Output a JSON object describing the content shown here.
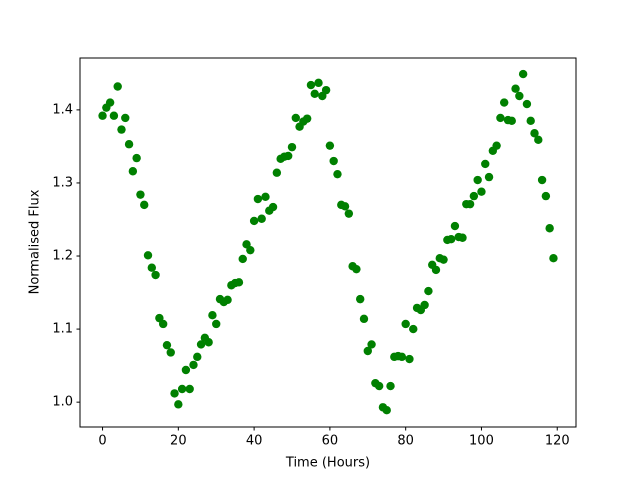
{
  "chart_data": {
    "type": "scatter",
    "color": "green",
    "xlabel": "Time (Hours)",
    "ylabel": "Normalised Flux",
    "xlim": [
      -5.95,
      124.95
    ],
    "ylim": [
      0.966,
      1.471
    ],
    "xticks": [
      0,
      20,
      40,
      60,
      80,
      100,
      120
    ],
    "yticks": [
      {
        "value": 1,
        "label": "1.0"
      },
      1.1,
      1.2,
      1.3,
      1.4
    ],
    "x": [
      0,
      1,
      2,
      3,
      4,
      5,
      6,
      7,
      8,
      9,
      10,
      11,
      12,
      13,
      14,
      15,
      16,
      17,
      18,
      19,
      20,
      21,
      22,
      23,
      24,
      25,
      26,
      27,
      28,
      29,
      30,
      31,
      32,
      33,
      34,
      35,
      36,
      37,
      38,
      39,
      40,
      41,
      42,
      43,
      44,
      45,
      46,
      47,
      48,
      49,
      50,
      51,
      52,
      53,
      54,
      55,
      56,
      57,
      58,
      59,
      60,
      61,
      62,
      63,
      64,
      65,
      66,
      67,
      68,
      69,
      70,
      71,
      72,
      73,
      74,
      75,
      76,
      77,
      78,
      79,
      80,
      81,
      82,
      83,
      84,
      85,
      86,
      87,
      88,
      89,
      90,
      91,
      92,
      93,
      94,
      95,
      96,
      97,
      98,
      99,
      100,
      101,
      102,
      103,
      104,
      105,
      106,
      107,
      108,
      109,
      110,
      111,
      112,
      113,
      114,
      115,
      116,
      117,
      118,
      119
    ],
    "values": [
      1.392,
      1.403,
      1.41,
      1.392,
      1.432,
      1.373,
      1.389,
      1.353,
      1.316,
      1.334,
      1.284,
      1.27,
      1.201,
      1.184,
      1.174,
      1.115,
      1.107,
      1.078,
      1.068,
      1.012,
      0.997,
      1.018,
      1.044,
      1.018,
      1.051,
      1.062,
      1.079,
      1.088,
      1.082,
      1.119,
      1.107,
      1.141,
      1.137,
      1.14,
      1.16,
      1.163,
      1.164,
      1.196,
      1.216,
      1.208,
      1.248,
      1.278,
      1.251,
      1.281,
      1.262,
      1.267,
      1.314,
      1.333,
      1.336,
      1.337,
      1.349,
      1.389,
      1.377,
      1.384,
      1.388,
      1.434,
      1.422,
      1.437,
      1.419,
      1.427,
      1.351,
      1.33,
      1.312,
      1.27,
      1.268,
      1.258,
      1.186,
      1.182,
      1.141,
      1.114,
      1.07,
      1.079,
      1.026,
      1.022,
      0.993,
      0.989,
      1.022,
      1.062,
      1.063,
      1.062,
      1.107,
      1.059,
      1.1,
      1.129,
      1.126,
      1.133,
      1.152,
      1.188,
      1.181,
      1.197,
      1.195,
      1.222,
      1.223,
      1.241,
      1.226,
      1.225,
      1.271,
      1.271,
      1.282,
      1.304,
      1.288,
      1.326,
      1.308,
      1.344,
      1.351,
      1.389,
      1.41,
      1.386,
      1.385,
      1.429,
      1.419,
      1.449,
      1.408,
      1.385,
      1.368,
      1.359,
      1.304,
      1.282,
      1.238,
      1.197
    ]
  }
}
